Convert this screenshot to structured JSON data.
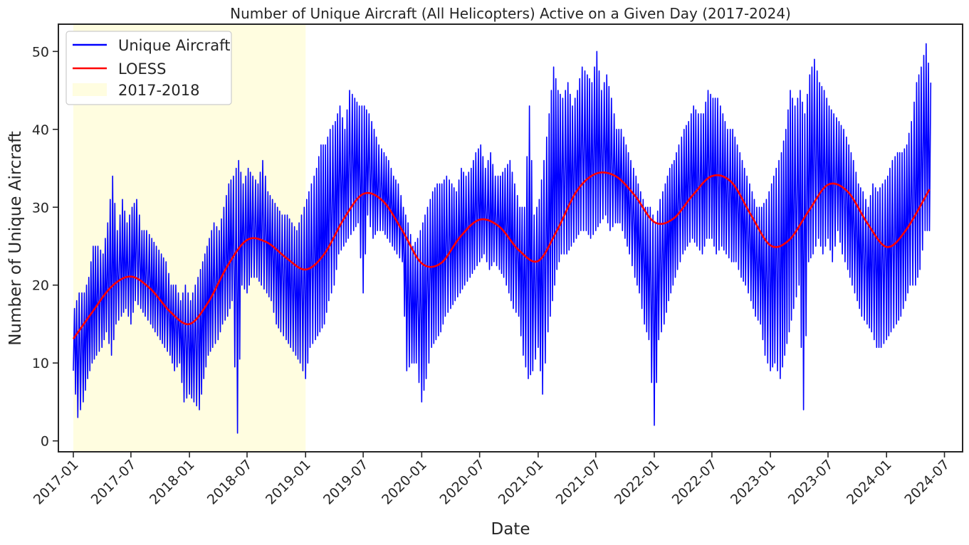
{
  "chart_data": {
    "type": "line",
    "title": "Number of Unique Aircraft (All Helicopters) Active on a Given Day (2017-2024)",
    "xlabel": "Date",
    "ylabel": "Number of Unique Aircraft",
    "x_range": [
      "2016-11-15",
      "2024-08-27"
    ],
    "ylim": [
      -1.4,
      53.5
    ],
    "y_ticks": [
      0,
      10,
      20,
      30,
      40,
      50
    ],
    "x_ticks": [
      "2017-01",
      "2017-07",
      "2018-01",
      "2018-07",
      "2019-01",
      "2019-07",
      "2020-01",
      "2020-07",
      "2021-01",
      "2021-07",
      "2022-01",
      "2022-07",
      "2023-01",
      "2023-07",
      "2024-01",
      "2024-07"
    ],
    "grid": false,
    "legend_position": "top-left",
    "highlight": {
      "label": "2017-2018",
      "start": "2017-01-01",
      "end": "2019-01-01",
      "color": "#fffde0"
    },
    "series": [
      {
        "name": "Unique Aircraft",
        "color": "#0000ff",
        "sampling": "approximate weekly envelope (min and max per week) traced from the figure",
        "x": [
          "2017-01-01",
          "2017-01-15",
          "2017-02-01",
          "2017-02-15",
          "2017-03-01",
          "2017-03-15",
          "2017-04-01",
          "2017-04-15",
          "2017-05-01",
          "2017-05-15",
          "2017-06-01",
          "2017-06-15",
          "2017-07-01",
          "2017-07-15",
          "2017-08-01",
          "2017-08-15",
          "2017-09-01",
          "2017-09-15",
          "2017-10-01",
          "2017-10-15",
          "2017-11-01",
          "2017-11-15",
          "2017-12-01",
          "2017-12-15",
          "2018-01-01",
          "2018-01-15",
          "2018-02-01",
          "2018-02-15",
          "2018-03-01",
          "2018-03-15",
          "2018-04-01",
          "2018-04-15",
          "2018-05-01",
          "2018-05-15",
          "2018-06-01",
          "2018-06-15",
          "2018-07-01",
          "2018-07-15",
          "2018-08-01",
          "2018-08-15",
          "2018-09-01",
          "2018-09-15",
          "2018-10-01",
          "2018-10-15",
          "2018-11-01",
          "2018-11-15",
          "2018-12-01",
          "2018-12-15",
          "2019-01-01",
          "2019-01-15",
          "2019-02-01",
          "2019-02-15",
          "2019-03-01",
          "2019-03-15",
          "2019-04-01",
          "2019-04-15",
          "2019-05-01",
          "2019-05-15",
          "2019-06-01",
          "2019-06-15",
          "2019-07-01",
          "2019-07-15",
          "2019-08-01",
          "2019-08-15",
          "2019-09-01",
          "2019-09-15",
          "2019-10-01",
          "2019-10-15",
          "2019-11-01",
          "2019-11-15",
          "2019-12-01",
          "2019-12-15",
          "2020-01-01",
          "2020-01-15",
          "2020-02-01",
          "2020-02-15",
          "2020-03-01",
          "2020-03-15",
          "2020-04-01",
          "2020-04-15",
          "2020-05-01",
          "2020-05-15",
          "2020-06-01",
          "2020-06-15",
          "2020-07-01",
          "2020-07-15",
          "2020-08-01",
          "2020-08-15",
          "2020-09-01",
          "2020-09-15",
          "2020-10-01",
          "2020-10-15",
          "2020-11-01",
          "2020-11-15",
          "2020-12-01",
          "2020-12-15",
          "2021-01-01",
          "2021-01-15",
          "2021-02-01",
          "2021-02-15",
          "2021-03-01",
          "2021-03-15",
          "2021-04-01",
          "2021-04-15",
          "2021-05-01",
          "2021-05-15",
          "2021-06-01",
          "2021-06-15",
          "2021-07-01",
          "2021-07-15",
          "2021-08-01",
          "2021-08-15",
          "2021-09-01",
          "2021-09-15",
          "2021-10-01",
          "2021-10-15",
          "2021-11-01",
          "2021-11-15",
          "2021-12-01",
          "2021-12-15",
          "2022-01-01",
          "2022-01-15",
          "2022-02-01",
          "2022-02-15",
          "2022-03-01",
          "2022-03-15",
          "2022-04-01",
          "2022-04-15",
          "2022-05-01",
          "2022-05-15",
          "2022-06-01",
          "2022-06-15",
          "2022-07-01",
          "2022-07-15",
          "2022-08-01",
          "2022-08-15",
          "2022-09-01",
          "2022-09-15",
          "2022-10-01",
          "2022-10-15",
          "2022-11-01",
          "2022-11-15",
          "2022-12-01",
          "2022-12-15",
          "2023-01-01",
          "2023-01-15",
          "2023-02-01",
          "2023-02-15",
          "2023-03-01",
          "2023-03-15",
          "2023-04-01",
          "2023-04-15",
          "2023-05-01",
          "2023-05-15",
          "2023-06-01",
          "2023-06-15",
          "2023-07-01",
          "2023-07-15",
          "2023-08-01",
          "2023-08-15",
          "2023-09-01",
          "2023-09-15",
          "2023-10-01",
          "2023-10-15",
          "2023-11-01",
          "2023-11-15",
          "2023-12-01",
          "2023-12-15",
          "2024-01-01",
          "2024-01-15",
          "2024-02-01",
          "2024-02-15",
          "2024-03-01",
          "2024-03-15",
          "2024-04-01",
          "2024-04-15",
          "2024-05-01",
          "2024-05-15"
        ],
        "y_min": [
          9,
          3,
          5,
          8,
          10,
          11,
          12,
          14,
          11,
          15,
          16,
          17,
          15,
          18,
          17,
          16,
          15,
          14,
          13,
          12,
          11,
          9,
          10,
          5,
          6,
          5,
          4,
          8,
          11,
          12,
          13,
          15,
          16,
          18,
          1,
          20,
          19,
          21,
          21,
          20,
          19,
          18,
          15,
          14,
          13,
          12,
          11,
          10,
          8,
          12,
          13,
          14,
          15,
          18,
          20,
          24,
          25,
          26,
          27,
          28,
          19,
          29,
          26,
          27,
          27,
          26,
          25,
          24,
          23,
          9,
          10,
          10,
          5,
          8,
          12,
          13,
          14,
          16,
          17,
          18,
          19,
          20,
          21,
          22,
          23,
          24,
          22,
          23,
          22,
          21,
          19,
          17,
          16,
          11,
          8,
          9,
          12,
          6,
          14,
          18,
          22,
          24,
          24,
          25,
          26,
          27,
          27,
          26,
          27,
          28,
          29,
          27,
          28,
          28,
          26,
          24,
          21,
          19,
          15,
          13,
          2,
          13,
          15,
          18,
          20,
          22,
          24,
          25,
          26,
          25,
          24,
          26,
          26,
          24,
          25,
          24,
          23,
          23,
          21,
          20,
          18,
          16,
          15,
          11,
          9,
          10,
          8,
          11,
          14,
          17,
          20,
          4,
          23,
          24,
          26,
          24,
          26,
          23,
          27,
          24,
          22,
          20,
          18,
          16,
          15,
          14,
          12,
          12,
          13,
          14,
          15,
          16,
          18,
          20,
          20,
          22,
          27,
          27
        ],
        "y_max": [
          17,
          19,
          19,
          21,
          25,
          25,
          24,
          28,
          34,
          27,
          31,
          28,
          30,
          31,
          27,
          27,
          26,
          25,
          24,
          23,
          20,
          20,
          18,
          20,
          18,
          20,
          22,
          24,
          26,
          28,
          27,
          30,
          33,
          34,
          36,
          33,
          35,
          34,
          33,
          36,
          32,
          31,
          30,
          29,
          29,
          28,
          27,
          29,
          31,
          33,
          35,
          38,
          38,
          40,
          41,
          43,
          40,
          45,
          44,
          43,
          43,
          42,
          40,
          38,
          37,
          36,
          34,
          33,
          30,
          28,
          25,
          26,
          28,
          30,
          32,
          33,
          33,
          34,
          33,
          32,
          35,
          34,
          35,
          37,
          38,
          35,
          37,
          34,
          34,
          35,
          36,
          33,
          30,
          30,
          43,
          29,
          31,
          36,
          42,
          48,
          45,
          44,
          46,
          43,
          45,
          48,
          47,
          46,
          50,
          45,
          47,
          44,
          40,
          40,
          38,
          36,
          34,
          32,
          30,
          30,
          28,
          31,
          33,
          35,
          36,
          38,
          40,
          41,
          43,
          42,
          42,
          45,
          44,
          44,
          42,
          40,
          40,
          38,
          36,
          34,
          32,
          30,
          30,
          31,
          33,
          35,
          37,
          40,
          45,
          43,
          45,
          42,
          47,
          49,
          46,
          45,
          43,
          42,
          41,
          40,
          38,
          36,
          33,
          32,
          30,
          33,
          32,
          33,
          34,
          36,
          37,
          37,
          38,
          41,
          46,
          48,
          51,
          46
        ]
      },
      {
        "name": "LOESS",
        "color": "#ff0000",
        "x": [
          "2017-01-01",
          "2017-03-01",
          "2017-05-01",
          "2017-07-01",
          "2017-09-01",
          "2017-11-01",
          "2018-01-01",
          "2018-03-01",
          "2018-05-01",
          "2018-07-01",
          "2018-09-01",
          "2018-11-01",
          "2019-01-01",
          "2019-03-01",
          "2019-05-01",
          "2019-07-01",
          "2019-09-01",
          "2019-11-01",
          "2020-01-01",
          "2020-03-01",
          "2020-05-01",
          "2020-07-01",
          "2020-09-01",
          "2020-11-01",
          "2021-01-01",
          "2021-03-01",
          "2021-05-01",
          "2021-07-01",
          "2021-09-01",
          "2021-11-01",
          "2022-01-01",
          "2022-03-01",
          "2022-05-01",
          "2022-07-01",
          "2022-09-01",
          "2022-11-01",
          "2023-01-01",
          "2023-03-01",
          "2023-05-01",
          "2023-07-01",
          "2023-09-01",
          "2023-11-01",
          "2024-01-01",
          "2024-03-01",
          "2024-05-15"
        ],
        "y": [
          13.1,
          16.5,
          19.8,
          21.1,
          19.5,
          16.6,
          15.0,
          17.8,
          22.5,
          25.8,
          25.5,
          23.5,
          22.0,
          24.0,
          28.5,
          31.7,
          30.8,
          27.0,
          22.8,
          22.8,
          26.2,
          28.4,
          27.5,
          24.5,
          23.1,
          27.0,
          32.0,
          34.3,
          34.0,
          31.5,
          28.1,
          28.5,
          31.5,
          34.0,
          33.2,
          29.0,
          25.1,
          25.8,
          29.5,
          32.9,
          32.0,
          28.0,
          24.9,
          27.0,
          32.3
        ]
      }
    ]
  }
}
